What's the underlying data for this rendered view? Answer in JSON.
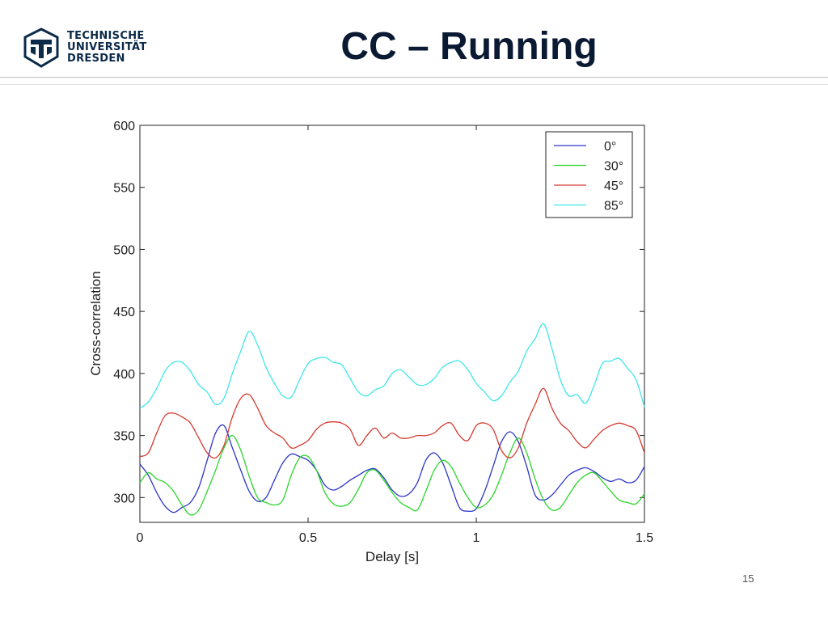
{
  "header": {
    "logo_lines": [
      "TECHNISCHE",
      "UNIVERSITÄT",
      "DRESDEN"
    ],
    "title": "CC – Running",
    "brand_color": "#0b2a4a"
  },
  "footer": {
    "page_number": "15"
  },
  "chart_data": {
    "type": "line",
    "title": "",
    "xlabel": "Delay [s]",
    "ylabel": "Cross-correlation",
    "xlim": [
      0,
      1.5
    ],
    "ylim": [
      280,
      600
    ],
    "xticks": [
      0,
      0.5,
      1,
      1.5
    ],
    "xtick_labels": [
      "0",
      "0.5",
      "1",
      "1.5"
    ],
    "yticks": [
      300,
      350,
      400,
      450,
      500,
      550,
      600
    ],
    "ytick_labels": [
      "300",
      "350",
      "400",
      "450",
      "500",
      "550",
      "600"
    ],
    "grid": false,
    "legend_position": "top-right",
    "x": [
      0,
      0.025,
      0.05,
      0.075,
      0.1,
      0.125,
      0.15,
      0.175,
      0.2,
      0.225,
      0.25,
      0.275,
      0.3,
      0.325,
      0.35,
      0.375,
      0.4,
      0.425,
      0.45,
      0.475,
      0.5,
      0.525,
      0.55,
      0.575,
      0.6,
      0.625,
      0.65,
      0.675,
      0.7,
      0.725,
      0.75,
      0.775,
      0.8,
      0.825,
      0.85,
      0.875,
      0.9,
      0.925,
      0.95,
      0.975,
      1,
      1.025,
      1.05,
      1.075,
      1.1,
      1.125,
      1.15,
      1.175,
      1.2,
      1.225,
      1.25,
      1.275,
      1.3,
      1.325,
      1.35,
      1.375,
      1.4,
      1.425,
      1.45,
      1.475,
      1.5
    ],
    "series": [
      {
        "name": "0°",
        "color": "#2b35c7",
        "values": [
          327,
          318,
          304,
          293,
          288,
          292,
          296,
          308,
          330,
          352,
          358,
          340,
          322,
          305,
          297,
          300,
          314,
          328,
          335,
          333,
          330,
          322,
          310,
          306,
          309,
          314,
          318,
          322,
          323,
          316,
          306,
          301,
          303,
          312,
          330,
          336,
          328,
          310,
          292,
          289,
          291,
          305,
          325,
          345,
          353,
          345,
          325,
          302,
          298,
          302,
          310,
          318,
          322,
          324,
          321,
          316,
          313,
          315,
          312,
          314,
          325
        ]
      },
      {
        "name": "30°",
        "color": "#2bd62b",
        "values": [
          312,
          320,
          315,
          312,
          305,
          294,
          286,
          290,
          305,
          322,
          340,
          350,
          338,
          317,
          300,
          296,
          294,
          298,
          318,
          332,
          333,
          322,
          304,
          295,
          293,
          296,
          307,
          320,
          322,
          314,
          304,
          296,
          292,
          290,
          305,
          322,
          330,
          325,
          312,
          300,
          292,
          294,
          302,
          318,
          336,
          348,
          336,
          315,
          298,
          290,
          292,
          302,
          312,
          318,
          320,
          313,
          305,
          298,
          296,
          295,
          303
        ]
      },
      {
        "name": "45°",
        "color": "#d43a2e",
        "values": [
          333,
          336,
          352,
          366,
          368,
          365,
          360,
          348,
          336,
          332,
          342,
          365,
          380,
          383,
          372,
          358,
          352,
          348,
          340,
          342,
          346,
          355,
          360,
          361,
          360,
          355,
          342,
          350,
          356,
          348,
          352,
          348,
          348,
          350,
          350,
          352,
          358,
          360,
          350,
          346,
          358,
          360,
          355,
          338,
          332,
          340,
          360,
          375,
          388,
          372,
          360,
          354,
          345,
          340,
          347,
          354,
          358,
          360,
          358,
          354,
          336
        ]
      },
      {
        "name": "85°",
        "color": "#3fe6ea",
        "values": [
          372,
          377,
          388,
          402,
          409,
          409,
          402,
          391,
          385,
          375,
          380,
          400,
          418,
          434,
          423,
          405,
          392,
          382,
          381,
          395,
          408,
          412,
          413,
          409,
          407,
          396,
          385,
          382,
          387,
          390,
          400,
          403,
          397,
          391,
          391,
          396,
          405,
          409,
          410,
          403,
          392,
          385,
          378,
          382,
          393,
          402,
          418,
          428,
          440,
          420,
          395,
          382,
          383,
          376,
          390,
          408,
          410,
          412,
          404,
          395,
          373
        ]
      }
    ]
  }
}
